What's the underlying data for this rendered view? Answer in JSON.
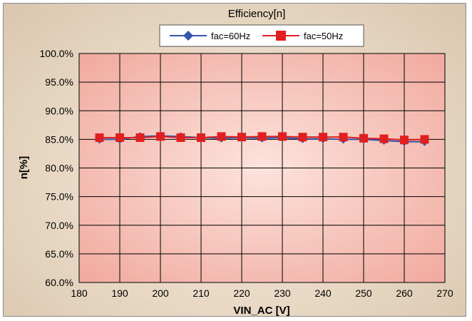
{
  "chart_data": {
    "type": "line",
    "title": "Efficiency[n]",
    "xlabel": "VIN_AC [V]",
    "ylabel": "n[%]",
    "xlim": [
      180,
      270
    ],
    "ylim": [
      60,
      100
    ],
    "x_ticks": [
      "180",
      "190",
      "200",
      "210",
      "220",
      "230",
      "240",
      "250",
      "260",
      "270"
    ],
    "y_ticks": [
      "60.0%",
      "65.0%",
      "70.0%",
      "75.0%",
      "80.0%",
      "85.0%",
      "90.0%",
      "95.0%",
      "100.0%"
    ],
    "grid": true,
    "legend_position": "top",
    "x": [
      185,
      190,
      195,
      200,
      205,
      210,
      215,
      220,
      225,
      230,
      235,
      240,
      245,
      250,
      255,
      260,
      265
    ],
    "series": [
      {
        "name": "fac=60Hz",
        "marker": "diamond",
        "color": "#3355aa",
        "values": [
          85.0,
          85.0,
          85.5,
          85.6,
          85.5,
          85.3,
          85.2,
          85.3,
          85.2,
          85.3,
          85.1,
          85.1,
          85.0,
          85.0,
          84.8,
          84.6,
          84.6
        ]
      },
      {
        "name": "fac=50Hz",
        "marker": "square",
        "color": "#e02020",
        "values": [
          85.3,
          85.3,
          85.3,
          85.5,
          85.3,
          85.3,
          85.5,
          85.4,
          85.5,
          85.5,
          85.4,
          85.4,
          85.4,
          85.2,
          85.1,
          84.9,
          85.0
        ]
      }
    ]
  },
  "colors": {
    "plot_background": "#f0b0a6",
    "plot_background_center": "#fce4dc",
    "grid": "#000000"
  }
}
